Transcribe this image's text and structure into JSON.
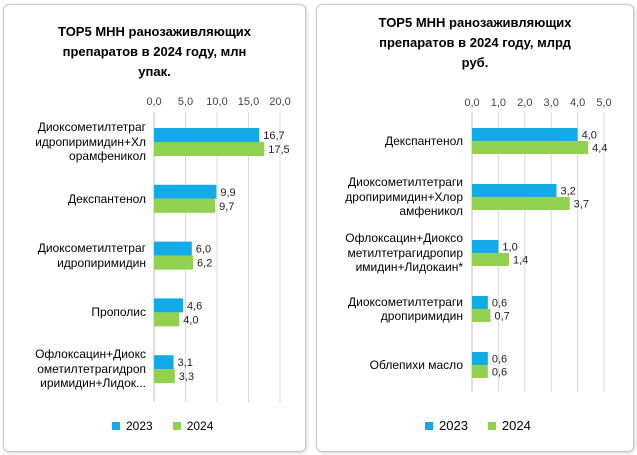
{
  "colors": {
    "s2023": "#12ABE6",
    "s2024": "#92D050",
    "grid": "#D9D9D9",
    "axis": "#BFBFBF"
  },
  "chart_data": [
    {
      "type": "bar",
      "orientation": "horizontal",
      "title": "TOP5 МНН ранозаживляющих препаратов в 2024 году, млн упак.",
      "categories": [
        "Диоксометилтетрагидропиримидин+Хлорамфеникол",
        "Декспантенол",
        "Диоксометилтетрагидропиримидин",
        "Прополис",
        "Офлоксацин+Диоксометилтетрагидропиримидин+Лидок..."
      ],
      "category_lines": [
        [
          "Диоксометилтетраг",
          "идропиримидин+Хл",
          "орамфеникол"
        ],
        [
          "Декспантенол"
        ],
        [
          "Диоксометилтетраг",
          "идропиримидин"
        ],
        [
          "Прополис"
        ],
        [
          "Офлоксацин+Диокс",
          "ометилтетрагидроп",
          "иримидин+Лидок..."
        ]
      ],
      "series": [
        {
          "name": "2023",
          "values": [
            16.7,
            9.9,
            6.0,
            4.6,
            3.1
          ],
          "labels": [
            "16,7",
            "9,9",
            "6,0",
            "4,6",
            "3,1"
          ]
        },
        {
          "name": "2024",
          "values": [
            17.5,
            9.7,
            6.2,
            4.0,
            3.3
          ],
          "labels": [
            "17,5",
            "9,7",
            "6,2",
            "4,0",
            "3,3"
          ]
        }
      ],
      "xlim": [
        0,
        20
      ],
      "ticks": [
        0,
        5,
        10,
        15,
        20
      ],
      "tick_labels": [
        "0,0",
        "5,0",
        "10,0",
        "15,0",
        "20,0"
      ],
      "axis_position": "top",
      "grid": true,
      "legend": "bottom"
    },
    {
      "type": "bar",
      "orientation": "horizontal",
      "title": "TOP5 МНН ранозаживляющих препаратов в 2024 году, млрд руб.",
      "categories": [
        "Декспантенол",
        "Диоксометилтетрагидропиримидин+Хлорамфеникол",
        "Офлоксацин+Диоксометилтетрагидропиримидин+Лидокаин*",
        "Диоксометилтетрагидропиримидин",
        "Облепихи масло"
      ],
      "category_lines": [
        [
          "Декспантенол"
        ],
        [
          "Диоксометилтетраги",
          "дропиримидин+Хлор",
          "амфеникол"
        ],
        [
          "Офлоксацин+Диоксо",
          "метилтетрагидропир",
          "имидин+Лидокаин*"
        ],
        [
          "Диоксометилтетраги",
          "дропиримидин"
        ],
        [
          "Облепихи масло"
        ]
      ],
      "series": [
        {
          "name": "2023",
          "values": [
            4.0,
            3.2,
            1.0,
            0.6,
            0.6
          ],
          "labels": [
            "4,0",
            "3,2",
            "1,0",
            "0,6",
            "0,6"
          ]
        },
        {
          "name": "2024",
          "values": [
            4.4,
            3.7,
            1.4,
            0.7,
            0.6
          ],
          "labels": [
            "4,4",
            "3,7",
            "1,4",
            "0,7",
            "0,6"
          ]
        }
      ],
      "xlim": [
        0,
        5
      ],
      "ticks": [
        0,
        1,
        2,
        3,
        4,
        5
      ],
      "tick_labels": [
        "0,0",
        "1,0",
        "2,0",
        "3,0",
        "4,0",
        "5,0"
      ],
      "axis_position": "top",
      "grid": true,
      "legend": "bottom"
    }
  ],
  "panels": [
    {
      "title_lines": [
        "TOP5 МНН ранозаживляющих",
        "препаратов в 2024 году, млн",
        "упак."
      ]
    },
    {
      "title_lines": [
        "TOP5 МНН ранозаживляющих",
        "препаратов в 2024 году, млрд",
        "руб."
      ]
    }
  ],
  "legend": {
    "items": [
      "2023",
      "2024"
    ]
  }
}
